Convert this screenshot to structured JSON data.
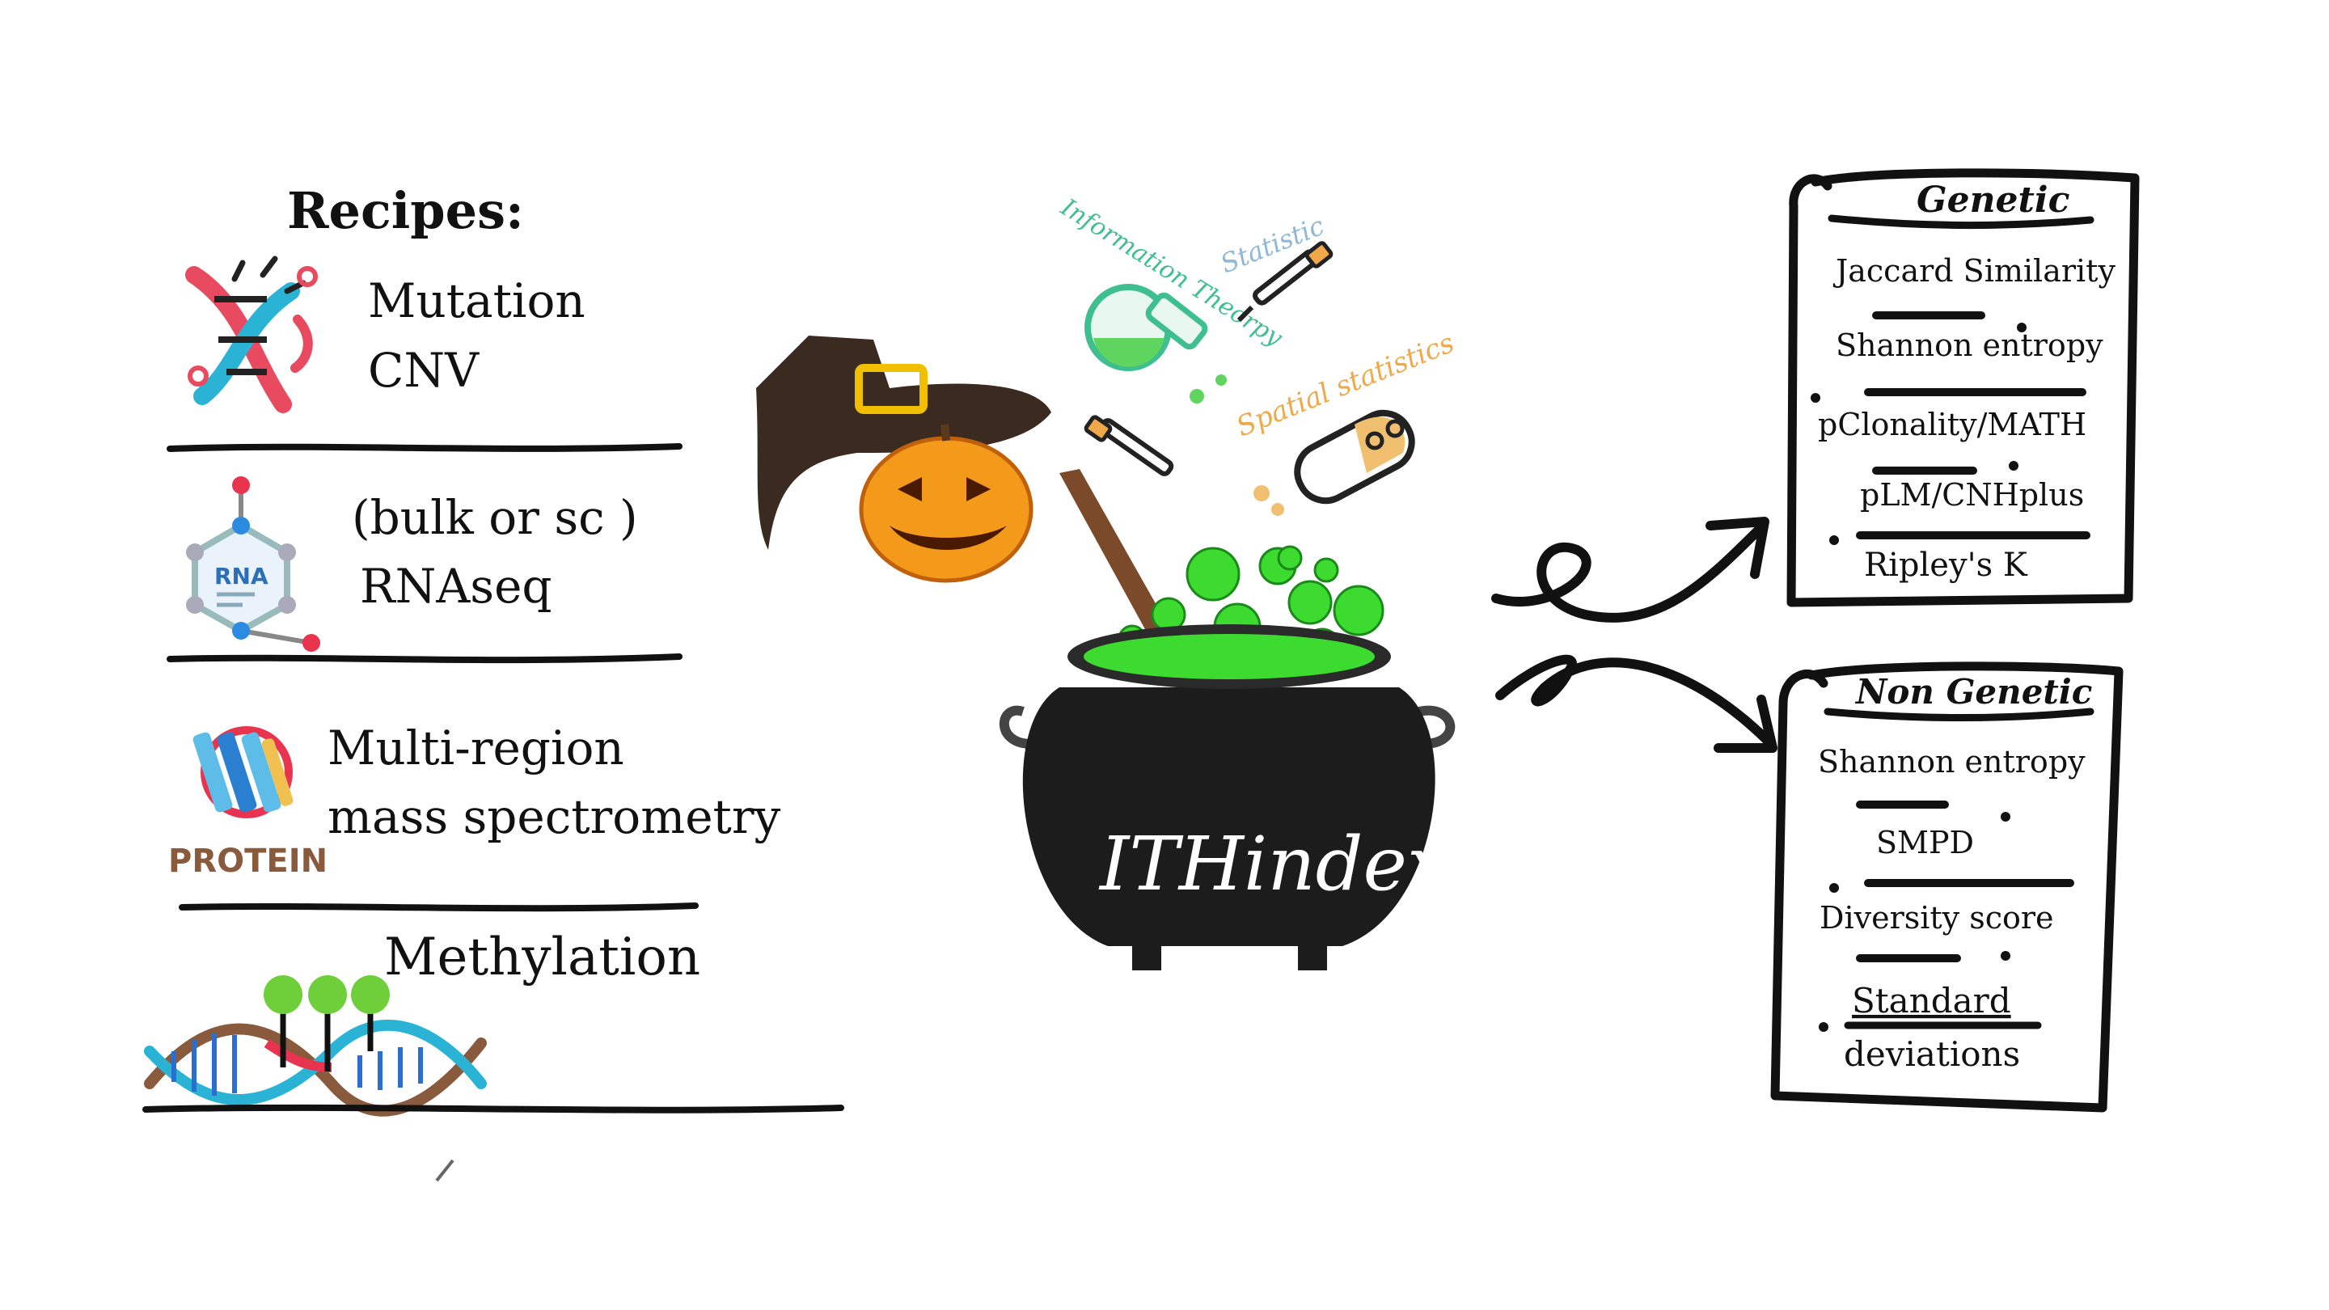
{
  "recipes": {
    "title": "Recipes:",
    "items": [
      {
        "icon": "dna-icon",
        "lines": [
          "Mutation",
          "CNV"
        ]
      },
      {
        "icon": "rna-molecule-icon",
        "icon_label": "RNA",
        "lines": [
          "(bulk or sc )",
          "RNAseq"
        ]
      },
      {
        "icon": "protein-icon",
        "icon_label": "PROTEIN",
        "lines": [
          "Multi-region",
          "mass spectrometry"
        ]
      },
      {
        "icon": "methylation-dna-icon",
        "lines": [
          "Methylation"
        ]
      }
    ]
  },
  "cauldron": {
    "label": "ITHindex",
    "potion_color": "#3ddb2f",
    "ingredients": [
      "Information Theorpy",
      "Statistic",
      "Spatial statistics"
    ]
  },
  "scrolls": [
    {
      "title": "Genetic",
      "items": [
        "Jaccard Similarity",
        "Shannon entropy",
        "pClonality/MATH",
        "pLM/CNHplus",
        "Ripley's K"
      ]
    },
    {
      "title": "Non Genetic",
      "items": [
        "Shannon entropy",
        "SMPD",
        "Diversity score",
        "Standard",
        "deviations"
      ]
    }
  ],
  "colors": {
    "ink": "#111111",
    "info_theory": "#3fbf8f",
    "statistic": "#8fb8d8",
    "spatial": "#f0a94a",
    "pumpkin": "#f39a1b"
  }
}
